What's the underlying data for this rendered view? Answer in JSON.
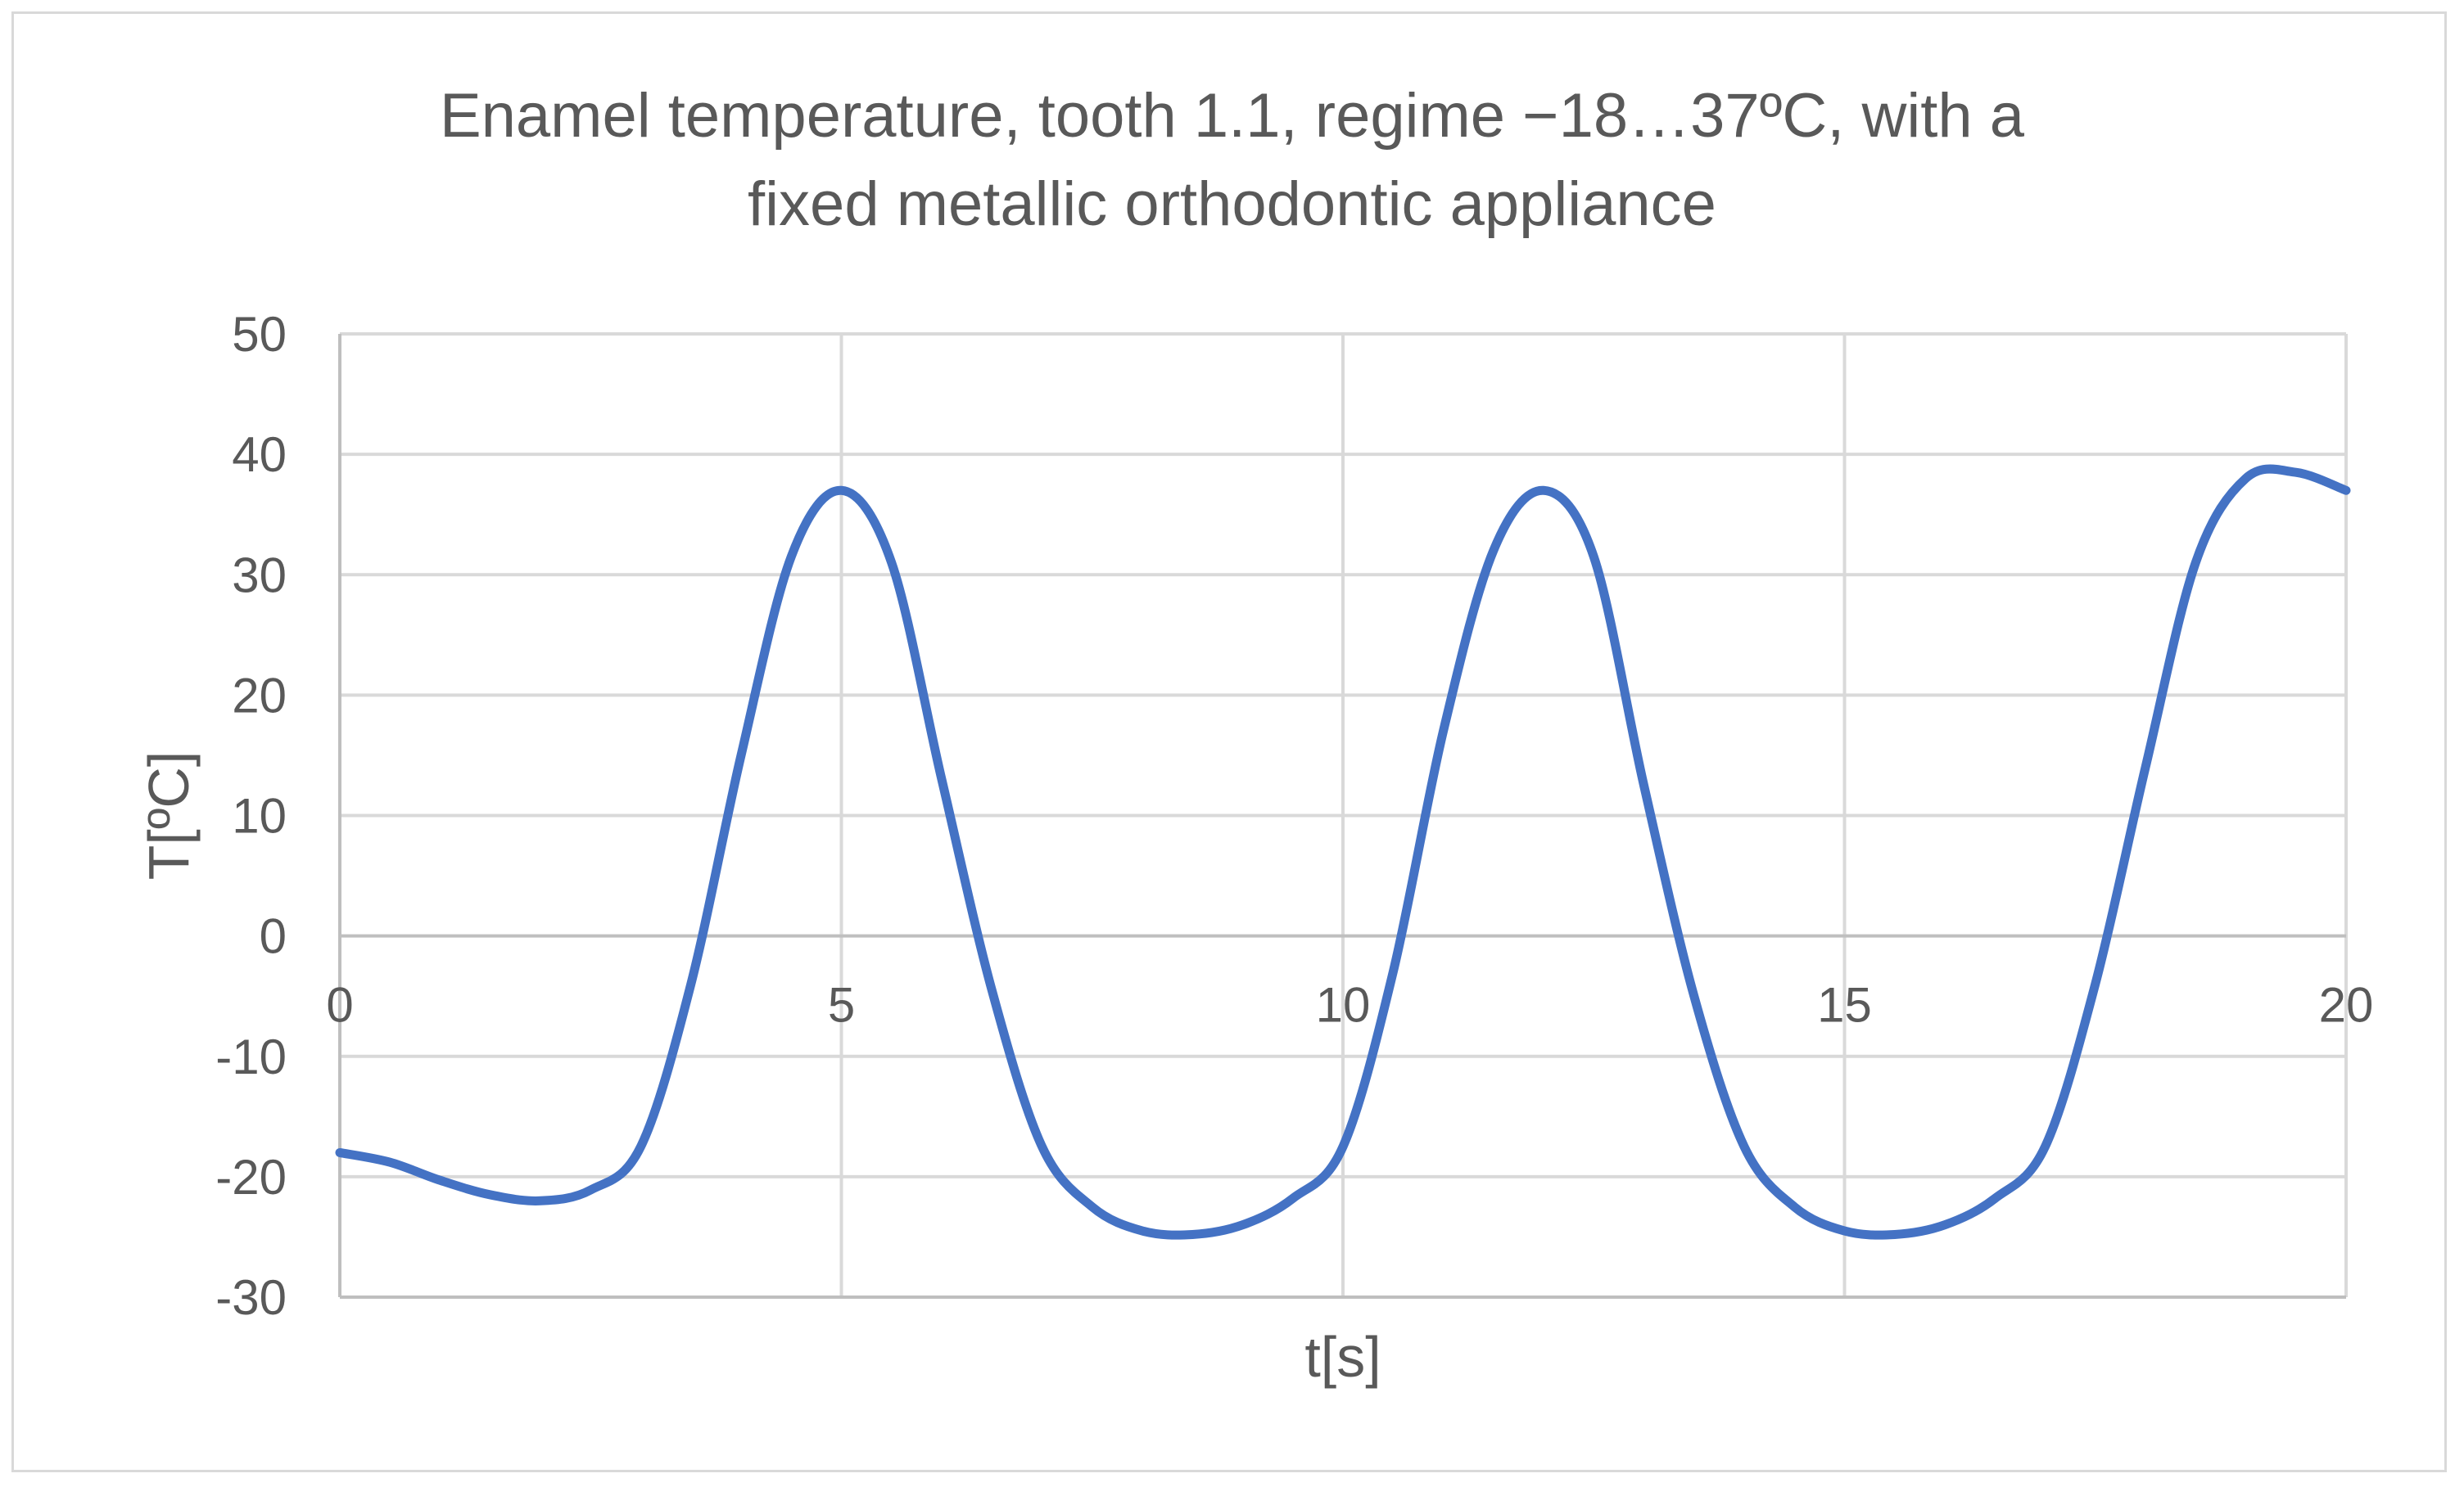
{
  "chart_data": {
    "type": "line",
    "title_lines": [
      "Enamel temperature, tooth 1.1, regime −18…37ºC, with a",
      "fixed metallic orthodontic appliance"
    ],
    "xlabel": "t[s]",
    "ylabel": "T[ºC]",
    "xlim": [
      0,
      20
    ],
    "ylim": [
      -30,
      50
    ],
    "x_ticks": [
      0,
      5,
      10,
      15,
      20
    ],
    "x_tick_labels": [
      "0",
      "5",
      "10",
      "15",
      "20"
    ],
    "y_ticks": [
      -30,
      -20,
      -10,
      0,
      10,
      20,
      30,
      40,
      50
    ],
    "y_tick_labels": [
      "-30",
      "-20",
      "-10",
      "0",
      "10",
      "20",
      "30",
      "40",
      "50"
    ],
    "grid": true,
    "legend": "none",
    "color": "#4472c4",
    "series": [
      {
        "x": [
          0,
          0.5,
          1,
          1.5,
          2,
          2.5,
          3,
          3.5,
          4,
          4.5,
          5,
          5.5,
          6,
          6.5,
          7,
          7.5,
          8,
          8.5,
          9,
          9.5,
          10,
          10.5,
          11,
          11.5,
          12,
          12.5,
          13,
          13.5,
          14,
          14.5,
          15,
          15.5,
          16,
          16.5,
          17,
          17.5,
          18,
          18.5,
          19,
          19.5,
          20
        ],
        "y": [
          -18,
          -18.8,
          -20.3,
          -21.5,
          -22,
          -21.1,
          -17.5,
          -4,
          15,
          31.5,
          37,
          31,
          13,
          -4.5,
          -17.5,
          -22.5,
          -24.5,
          -24.8,
          -24,
          -21.8,
          -17.5,
          -3,
          17,
          32,
          37,
          31.5,
          12.5,
          -5,
          -17.5,
          -22.5,
          -24.5,
          -24.8,
          -24,
          -21.8,
          -17.5,
          -4,
          14,
          31,
          38,
          38.5,
          37
        ]
      }
    ]
  }
}
